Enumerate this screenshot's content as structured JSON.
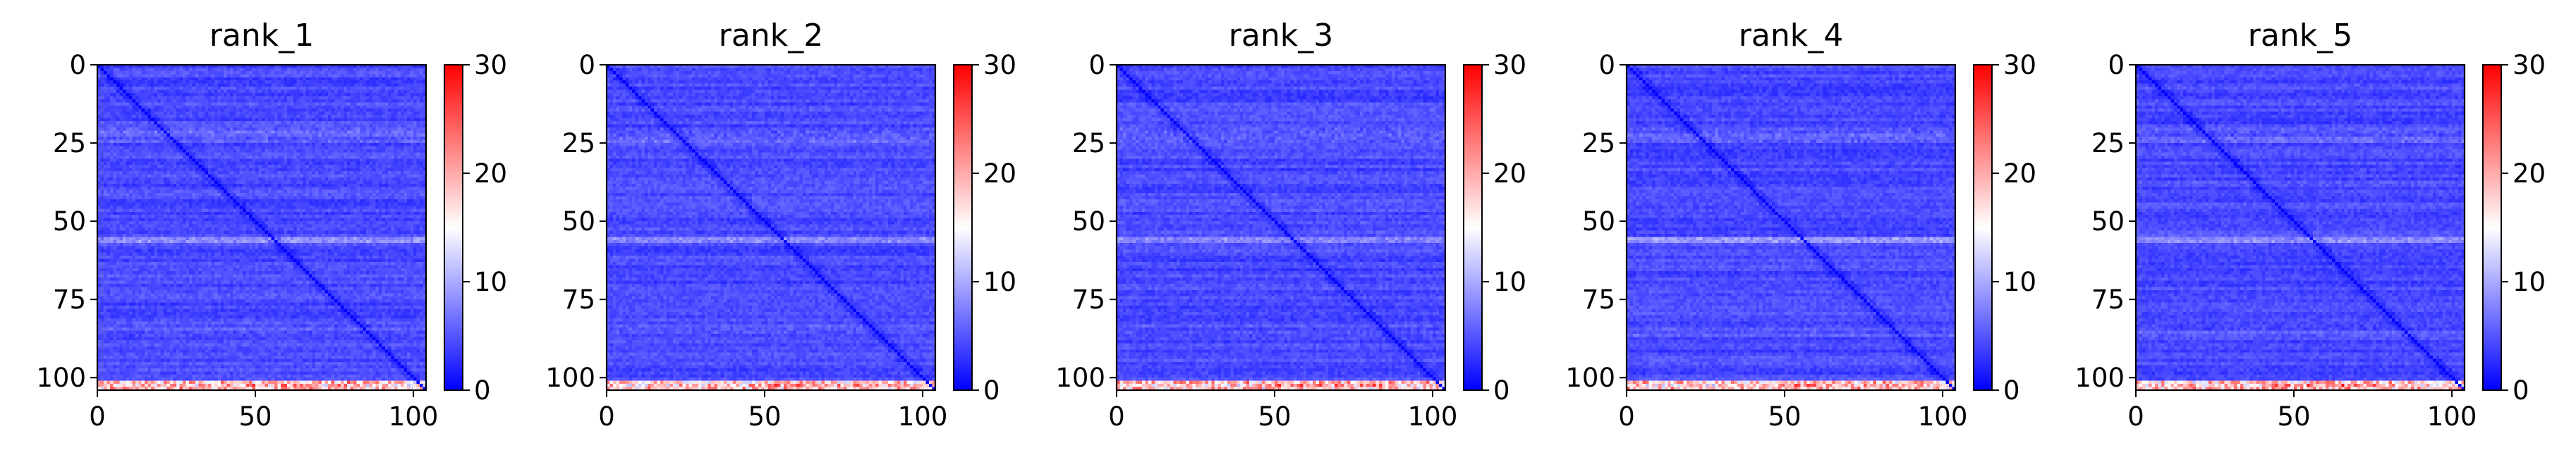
{
  "chart_data": [
    {
      "type": "heatmap",
      "title": "rank_1",
      "x_ticks": [
        "0",
        "50",
        "100"
      ],
      "y_ticks": [
        "0",
        "25",
        "50",
        "75",
        "100"
      ],
      "xlim": [
        0,
        104
      ],
      "ylim": [
        104,
        0
      ],
      "colorbar": {
        "range": [
          0,
          30
        ],
        "ticks": [
          "0",
          "10",
          "20",
          "30"
        ],
        "colormap": [
          "#0000ff",
          "#ffffff",
          "#ff0000"
        ]
      }
    },
    {
      "type": "heatmap",
      "title": "rank_2",
      "x_ticks": [
        "0",
        "50",
        "100"
      ],
      "y_ticks": [
        "0",
        "25",
        "50",
        "75",
        "100"
      ],
      "xlim": [
        0,
        104
      ],
      "ylim": [
        104,
        0
      ],
      "colorbar": {
        "range": [
          0,
          30
        ],
        "ticks": [
          "0",
          "10",
          "20",
          "30"
        ],
        "colormap": [
          "#0000ff",
          "#ffffff",
          "#ff0000"
        ]
      }
    },
    {
      "type": "heatmap",
      "title": "rank_3",
      "x_ticks": [
        "0",
        "50",
        "100"
      ],
      "y_ticks": [
        "0",
        "25",
        "50",
        "75",
        "100"
      ],
      "xlim": [
        0,
        104
      ],
      "ylim": [
        104,
        0
      ],
      "colorbar": {
        "range": [
          0,
          30
        ],
        "ticks": [
          "0",
          "10",
          "20",
          "30"
        ],
        "colormap": [
          "#0000ff",
          "#ffffff",
          "#ff0000"
        ]
      }
    },
    {
      "type": "heatmap",
      "title": "rank_4",
      "x_ticks": [
        "0",
        "50",
        "100"
      ],
      "y_ticks": [
        "0",
        "25",
        "50",
        "75",
        "100"
      ],
      "xlim": [
        0,
        104
      ],
      "ylim": [
        104,
        0
      ],
      "colorbar": {
        "range": [
          0,
          30
        ],
        "ticks": [
          "0",
          "10",
          "20",
          "30"
        ],
        "colormap": [
          "#0000ff",
          "#ffffff",
          "#ff0000"
        ]
      }
    },
    {
      "type": "heatmap",
      "title": "rank_5",
      "x_ticks": [
        "0",
        "50",
        "100"
      ],
      "y_ticks": [
        "0",
        "25",
        "50",
        "75",
        "100"
      ],
      "xlim": [
        0,
        104
      ],
      "ylim": [
        104,
        0
      ],
      "colorbar": {
        "range": [
          0,
          30
        ],
        "ticks": [
          "0",
          "10",
          "20",
          "30"
        ],
        "colormap": [
          "#0000ff",
          "#ffffff",
          "#ff0000"
        ]
      }
    }
  ]
}
